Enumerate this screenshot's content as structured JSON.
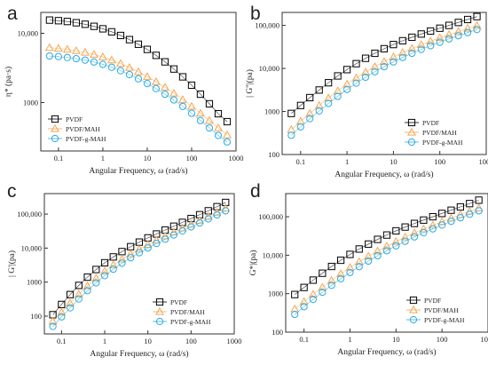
{
  "chart_data": [
    {
      "type": "line",
      "panel_label": "a",
      "xlabel": "Angular Frequency, ω (rad/s)",
      "ylabel": "η* (pa·s)",
      "xscale": "log",
      "yscale": "log",
      "xlim": [
        0.04,
        1000
      ],
      "ylim": [
        200,
        20000
      ],
      "xticks": [
        {
          "v": 0.1,
          "label": "0.1"
        },
        {
          "v": 1,
          "label": "1"
        },
        {
          "v": 10,
          "label": "10"
        },
        {
          "v": 100,
          "label": "100"
        },
        {
          "v": 1000,
          "label": "1000"
        }
      ],
      "yticks": [
        {
          "v": 1000,
          "label": "1000"
        },
        {
          "v": 10000,
          "label": "10,000"
        }
      ],
      "legend": "bottom-left",
      "x": [
        0.063,
        0.1,
        0.158,
        0.251,
        0.398,
        0.631,
        1,
        1.58,
        2.51,
        3.98,
        6.31,
        10,
        15.8,
        25.1,
        39.8,
        63.1,
        100,
        158,
        251,
        398,
        631
      ],
      "series": [
        {
          "name": "PVDF",
          "marker": "square",
          "color": "#000000",
          "values": [
            15500,
            15200,
            14800,
            14200,
            13500,
            12600,
            11600,
            10500,
            9300,
            8100,
            6950,
            5850,
            4800,
            3870,
            3050,
            2350,
            1780,
            1320,
            960,
            690,
            530
          ]
        },
        {
          "name": "PVDF/MAH",
          "marker": "triangle",
          "color": "#f4a652",
          "values": [
            6200,
            6050,
            5850,
            5600,
            5300,
            4950,
            4550,
            4100,
            3650,
            3200,
            2780,
            2370,
            2000,
            1660,
            1360,
            1100,
            880,
            700,
            550,
            430,
            340
          ]
        },
        {
          "name": "PVDF-g-MAH",
          "marker": "circle",
          "color": "#29abe2",
          "values": [
            4700,
            4600,
            4470,
            4300,
            4100,
            3850,
            3560,
            3230,
            2880,
            2530,
            2200,
            1880,
            1590,
            1320,
            1090,
            880,
            700,
            550,
            430,
            335,
            270
          ]
        }
      ]
    },
    {
      "type": "line",
      "panel_label": "b",
      "xlabel": "Angular Frequency, ω (rad/s)",
      "ylabel": "| G''|(pa)",
      "xscale": "log",
      "yscale": "log",
      "xlim": [
        0.04,
        1000
      ],
      "ylim": [
        100,
        200000
      ],
      "xticks": [
        {
          "v": 0.1,
          "label": "0.1"
        },
        {
          "v": 1,
          "label": "1"
        },
        {
          "v": 10,
          "label": "10"
        },
        {
          "v": 100,
          "label": "100"
        },
        {
          "v": 1000,
          "label": "1000"
        }
      ],
      "yticks": [
        {
          "v": 100,
          "label": "100"
        },
        {
          "v": 1000,
          "label": "1000"
        },
        {
          "v": 10000,
          "label": "10,000"
        },
        {
          "v": 100000,
          "label": "100,000"
        }
      ],
      "legend": "bottom-right",
      "x": [
        0.063,
        0.1,
        0.158,
        0.251,
        0.398,
        0.631,
        1,
        1.58,
        2.51,
        3.98,
        6.31,
        10,
        15.8,
        25.1,
        39.8,
        63.1,
        100,
        158,
        251,
        398,
        631
      ],
      "series": [
        {
          "name": "PVDF",
          "marker": "square",
          "color": "#000000",
          "values": [
            900,
            1380,
            2100,
            3150,
            4650,
            6700,
            9400,
            12900,
            17200,
            22500,
            28700,
            35900,
            44000,
            53000,
            63000,
            74000,
            86000,
            100000,
            117000,
            137000,
            160000
          ]
        },
        {
          "name": "PVDF/MAH",
          "marker": "triangle",
          "color": "#f4a652",
          "values": [
            380,
            590,
            900,
            1370,
            2050,
            3000,
            4300,
            6000,
            8200,
            11000,
            14400,
            18500,
            23400,
            29000,
            35500,
            43000,
            51500,
            61000,
            72000,
            85000,
            100000
          ]
        },
        {
          "name": "PVDF-g-MAH",
          "marker": "circle",
          "color": "#29abe2",
          "values": [
            280,
            440,
            680,
            1030,
            1540,
            2250,
            3250,
            4550,
            6250,
            8400,
            11000,
            14200,
            18000,
            22500,
            27700,
            33700,
            40500,
            48500,
            57500,
            68000,
            80000
          ]
        }
      ]
    },
    {
      "type": "line",
      "panel_label": "c",
      "xlabel": "Angular Frequency, ω (rad/s)",
      "ylabel": "| G'|(pa)",
      "xscale": "log",
      "yscale": "log",
      "xlim": [
        0.04,
        1000
      ],
      "ylim": [
        30,
        400000
      ],
      "xticks": [
        {
          "v": 0.1,
          "label": "0.1"
        },
        {
          "v": 1,
          "label": "1"
        },
        {
          "v": 10,
          "label": "10"
        },
        {
          "v": 100,
          "label": "100"
        },
        {
          "v": 1000,
          "label": "1000"
        }
      ],
      "yticks": [
        {
          "v": 100,
          "label": "100"
        },
        {
          "v": 1000,
          "label": "1000"
        },
        {
          "v": 10000,
          "label": "10,000"
        },
        {
          "v": 100000,
          "label": "100,000"
        }
      ],
      "legend": "bottom-right",
      "x": [
        0.063,
        0.1,
        0.158,
        0.251,
        0.398,
        0.631,
        1,
        1.58,
        2.51,
        3.98,
        6.31,
        10,
        15.8,
        25.1,
        39.8,
        63.1,
        100,
        158,
        251,
        398,
        631
      ],
      "series": [
        {
          "name": "PVDF",
          "marker": "square",
          "color": "#000000",
          "values": [
            110,
            220,
            430,
            800,
            1400,
            2350,
            3700,
            5500,
            7900,
            11000,
            15000,
            20000,
            26000,
            34000,
            44000,
            57000,
            74000,
            96000,
            125000,
            165000,
            220000
          ]
        },
        {
          "name": "PVDF/MAH",
          "marker": "triangle",
          "color": "#f4a652",
          "values": [
            70,
            130,
            240,
            440,
            770,
            1300,
            2100,
            3200,
            4700,
            6700,
            9300,
            12700,
            17000,
            22500,
            29500,
            38500,
            50000,
            65000,
            85000,
            112000,
            150000
          ]
        },
        {
          "name": "PVDF-g-MAH",
          "marker": "circle",
          "color": "#29abe2",
          "values": [
            50,
            95,
            175,
            320,
            560,
            950,
            1550,
            2400,
            3600,
            5200,
            7300,
            10100,
            13700,
            18300,
            24300,
            32000,
            42000,
            55000,
            72000,
            95000,
            125000
          ]
        }
      ]
    },
    {
      "type": "line",
      "panel_label": "d",
      "xlabel": "Angular Frequency, ω (rad/s)",
      "ylabel": "G*|(pa)",
      "xscale": "log",
      "yscale": "log",
      "xlim": [
        0.04,
        1000
      ],
      "ylim": [
        100,
        400000
      ],
      "xticks": [
        {
          "v": 0.1,
          "label": "0.1"
        },
        {
          "v": 1,
          "label": "1"
        },
        {
          "v": 10,
          "label": "10"
        },
        {
          "v": 100,
          "label": "100"
        },
        {
          "v": 1000,
          "label": "1000"
        }
      ],
      "yticks": [
        {
          "v": 100,
          "label": "100"
        },
        {
          "v": 1000,
          "label": "1000"
        },
        {
          "v": 10000,
          "label": "10,000"
        },
        {
          "v": 100000,
          "label": "100,000"
        }
      ],
      "legend": "bottom-right",
      "x": [
        0.063,
        0.1,
        0.158,
        0.251,
        0.398,
        0.631,
        1,
        1.58,
        2.51,
        3.98,
        6.31,
        10,
        15.8,
        25.1,
        39.8,
        63.1,
        100,
        158,
        251,
        398,
        631
      ],
      "series": [
        {
          "name": "PVDF",
          "marker": "square",
          "color": "#000000",
          "values": [
            950,
            1450,
            2250,
            3400,
            5100,
            7400,
            10500,
            14500,
            19500,
            25800,
            33500,
            43000,
            54000,
            67000,
            82000,
            100000,
            122000,
            148000,
            180000,
            220000,
            270000
          ]
        },
        {
          "name": "PVDF/MAH",
          "marker": "triangle",
          "color": "#f4a652",
          "values": [
            400,
            620,
            960,
            1470,
            2220,
            3300,
            4800,
            6800,
            9400,
            12800,
            17200,
            22700,
            29500,
            38000,
            48000,
            60000,
            75000,
            92000,
            113000,
            138000,
            170000
          ]
        },
        {
          "name": "PVDF-g-MAH",
          "marker": "circle",
          "color": "#29abe2",
          "values": [
            290,
            460,
            710,
            1090,
            1650,
            2450,
            3550,
            5050,
            7050,
            9700,
            13100,
            17500,
            23000,
            30000,
            38500,
            48500,
            61000,
            76000,
            94000,
            116000,
            143000
          ]
        }
      ]
    }
  ]
}
